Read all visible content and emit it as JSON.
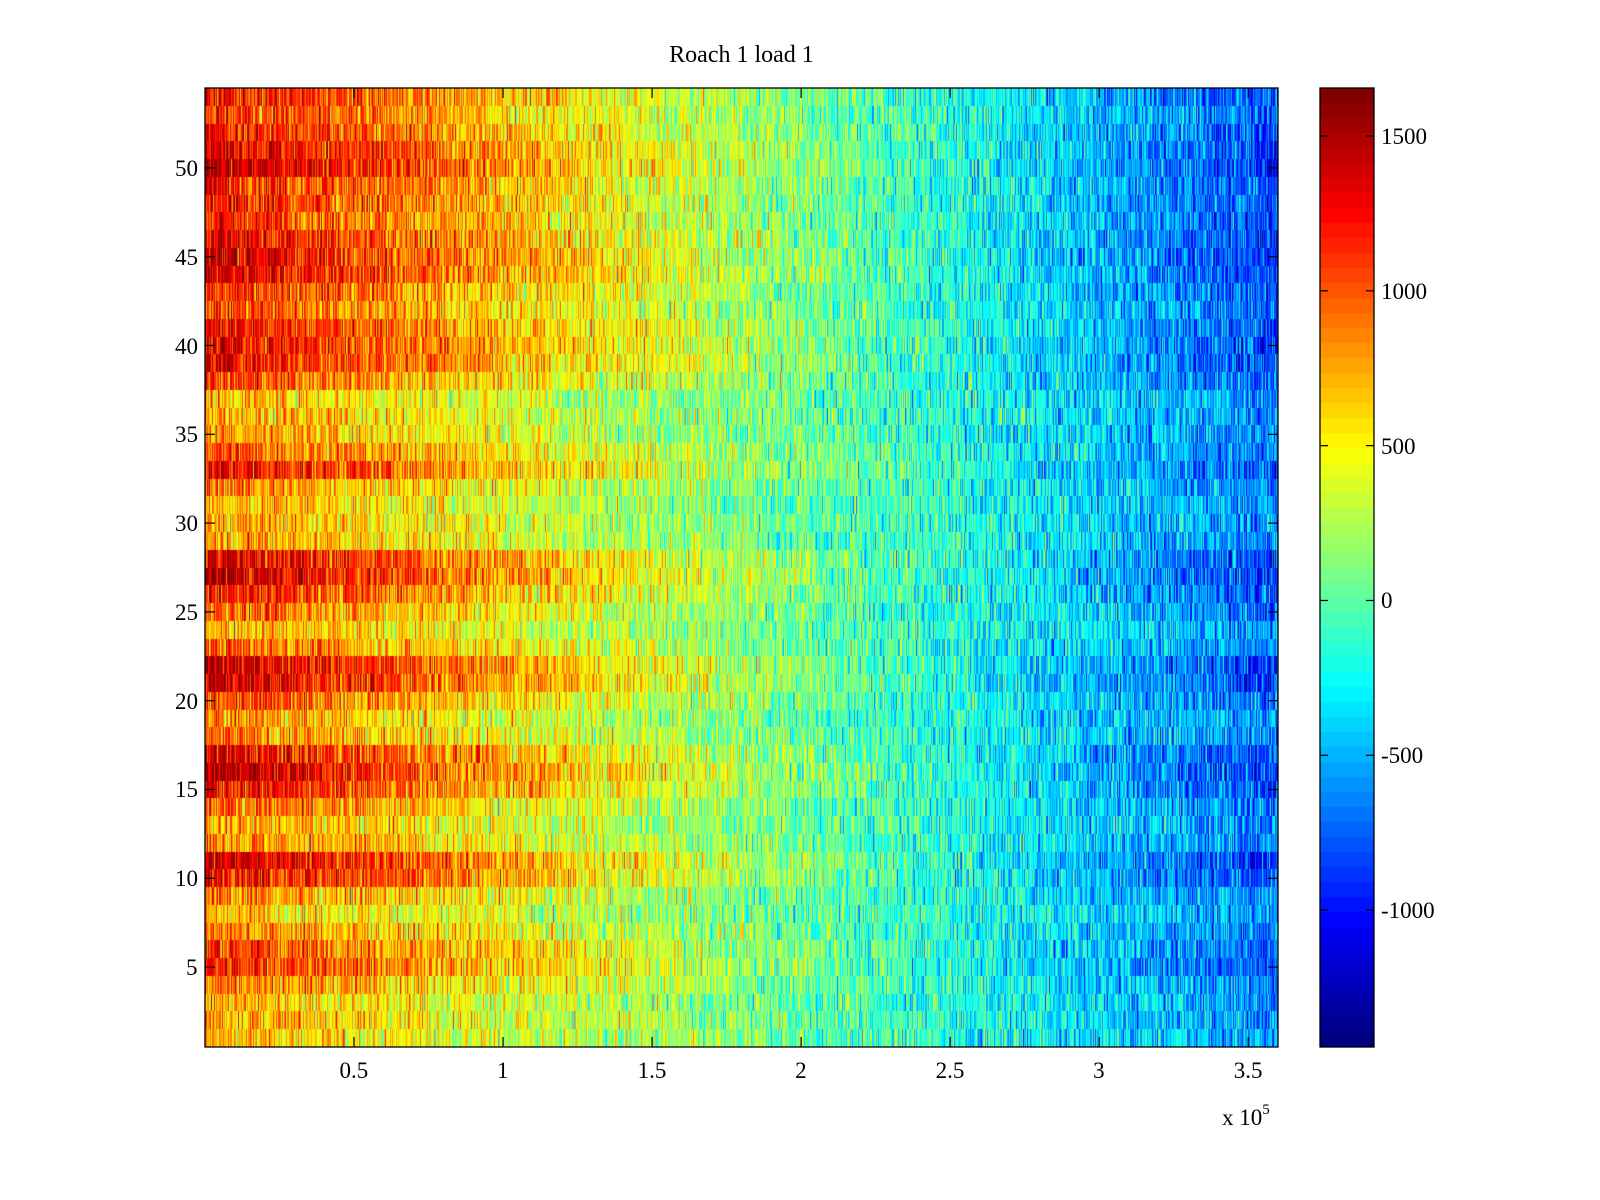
{
  "chart_data": {
    "type": "heatmap",
    "title": "Roach 1 load 1",
    "xlabel": "",
    "ylabel": "",
    "x_multiplier_label": "x 10",
    "x_multiplier_exponent": "5",
    "xlim": [
      0,
      360000
    ],
    "ylim": [
      0.5,
      54.5
    ],
    "n_rows": 54,
    "xticks": [
      50000,
      100000,
      150000,
      200000,
      250000,
      300000,
      350000
    ],
    "xtick_labels": [
      "0.5",
      "1",
      "1.5",
      "2",
      "2.5",
      "3",
      "3.5"
    ],
    "yticks": [
      5,
      10,
      15,
      20,
      25,
      30,
      35,
      40,
      45,
      50
    ],
    "ytick_labels": [
      "5",
      "10",
      "15",
      "20",
      "25",
      "30",
      "35",
      "40",
      "45",
      "50"
    ],
    "colormap": "jet",
    "clim": [
      -1442,
      1655
    ],
    "colorbar_ticks": [
      -1000,
      -500,
      0,
      500,
      1000,
      1500
    ],
    "colorbar_tick_labels": [
      "-1000",
      "-500",
      "0",
      "500",
      "1000",
      "1500"
    ],
    "row_values_at_x_min": [
      700,
      800,
      750,
      950,
      1200,
      1150,
      900,
      700,
      900,
      1350,
      1450,
      900,
      800,
      1000,
      1300,
      1500,
      1350,
      900,
      850,
      1100,
      1450,
      1450,
      1000,
      800,
      1000,
      1250,
      1500,
      1400,
      850,
      800,
      750,
      900,
      1300,
      1050,
      850,
      800,
      750,
      1100,
      1350,
      1350,
      1300,
      1100,
      1200,
      1400,
      1450,
      1350,
      1200,
      1250,
      1250,
      1500,
      1400,
      1250,
      1150,
      1250
    ],
    "row_values_at_x_max": [
      -550,
      -600,
      -600,
      -650,
      -800,
      -750,
      -650,
      -550,
      -650,
      -850,
      -900,
      -650,
      -600,
      -700,
      -800,
      -900,
      -850,
      -650,
      -650,
      -750,
      -900,
      -900,
      -700,
      -600,
      -700,
      -800,
      -900,
      -850,
      -650,
      -600,
      -600,
      -650,
      -800,
      -700,
      -650,
      -600,
      -600,
      -750,
      -850,
      -850,
      -800,
      -750,
      -800,
      -850,
      -900,
      -850,
      -800,
      -800,
      -800,
      -900,
      -850,
      -800,
      -750,
      -800
    ],
    "trend": "each row decreases roughly linearly from its x_min value to its x_max value, with column-to-column noise",
    "noise_std": 250,
    "grid": false,
    "legend": "colorbar-right"
  }
}
